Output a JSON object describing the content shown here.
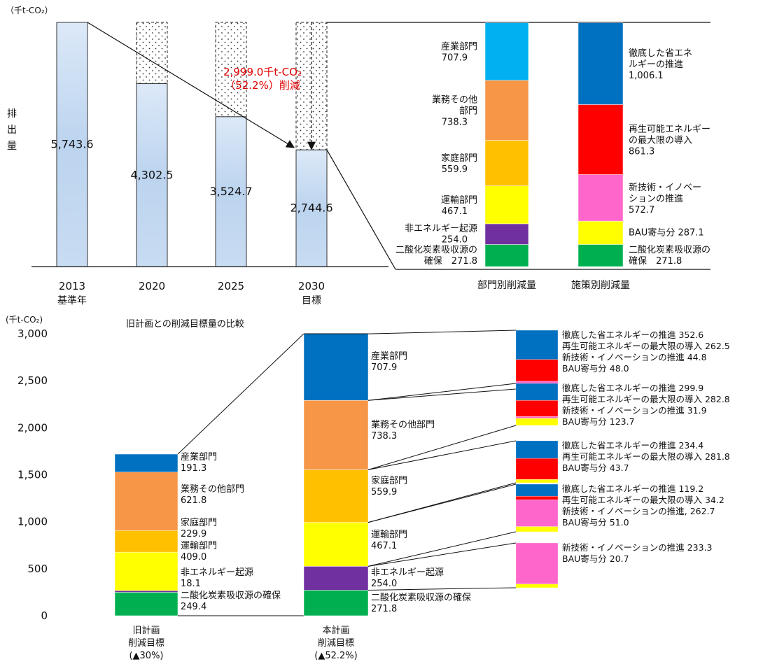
{
  "chart_data": [
    {
      "type": "bar",
      "unit_label": "（千t-CO₂）",
      "ylabel": "排出量",
      "categories": [
        {
          "line1": "2013",
          "line2": "基準年"
        },
        {
          "line1": "2020",
          "line2": ""
        },
        {
          "line1": "2025",
          "line2": ""
        },
        {
          "line1": "2030",
          "line2": "目標"
        }
      ],
      "values": [
        5743.6,
        4302.5,
        3524.7,
        2744.6
      ],
      "value_labels": [
        "5,743.6",
        "4,302.5",
        "3,524.7",
        "2,744.6"
      ],
      "reduction_annotation": [
        "2,999.0千t-CO₂",
        "（52.2%）削減"
      ],
      "ylim": [
        0,
        5743.6
      ],
      "grid": false
    },
    {
      "type": "bar",
      "stacked": true,
      "categories": [
        "部門別削減量",
        "施策別削減量"
      ],
      "series_by_sector": [
        {
          "name_lines": [
            "産業部門"
          ],
          "value": 707.9,
          "value_label": "707.9",
          "color": "#00B0F0"
        },
        {
          "name_lines": [
            "業務その他",
            "部門"
          ],
          "value": 738.3,
          "value_label": "738.3",
          "color": "#F79646"
        },
        {
          "name_lines": [
            "家庭部門"
          ],
          "value": 559.9,
          "value_label": "559.9",
          "color": "#FFC000"
        },
        {
          "name_lines": [
            "運輸部門"
          ],
          "value": 467.1,
          "value_label": "467.1",
          "color": "#FFFF00"
        },
        {
          "name_lines": [
            "非エネルギー起源"
          ],
          "value": 254.0,
          "value_label": "254.0",
          "color": "#7030A0"
        },
        {
          "name_lines": [
            "二酸化炭素吸収源の"
          ],
          "value": 271.8,
          "value_label": "確保　271.8",
          "color": "#00B050"
        }
      ],
      "series_by_measure": [
        {
          "name_lines": [
            "徹底した省エネ",
            "ルギーの推進"
          ],
          "value": 1006.1,
          "value_label": "1,006.1",
          "color": "#0070C0"
        },
        {
          "name_lines": [
            "再生可能エネルギー",
            "の最大限の導入"
          ],
          "value": 861.3,
          "value_label": "861.3",
          "color": "#FF0000"
        },
        {
          "name_lines": [
            "新技術・イノベー",
            "ションの推進"
          ],
          "value": 572.7,
          "value_label": "572.7",
          "color": "#FF66CC"
        },
        {
          "name_lines": [],
          "value": 287.1,
          "value_label": "BAU寄与分 287.1",
          "color": "#FFFF00"
        },
        {
          "name_lines": [
            "二酸化炭素吸収源の"
          ],
          "value": 271.8,
          "value_label": "確保　271.8",
          "color": "#00B050"
        }
      ]
    },
    {
      "type": "bar",
      "stacked": true,
      "title": "旧計画との削減目標量の比較",
      "unit_label": "(千t-CO₂)",
      "ylim": [
        0,
        3000
      ],
      "yticks": [
        {
          "value": 0,
          "label": "0"
        },
        {
          "value": 500,
          "label": "500"
        },
        {
          "value": 1000,
          "label": "1,000"
        },
        {
          "value": 1500,
          "label": "1,500"
        },
        {
          "value": 2000,
          "label": "2,000"
        },
        {
          "value": 2500,
          "label": "2,500"
        },
        {
          "value": 3000,
          "label": "3,000"
        }
      ],
      "categories": [
        {
          "lines": [
            "旧計画",
            "削減目標",
            "(▲30%)"
          ]
        },
        {
          "lines": [
            "本計画",
            "削減目標",
            "(▲52.2%)"
          ]
        }
      ],
      "series": [
        {
          "name": "二酸化炭素吸収源の確保",
          "color": "#00B050",
          "values": [
            249.4,
            271.8
          ],
          "value_labels": [
            "249.4",
            "271.8"
          ]
        },
        {
          "name": "非エネルギー起源",
          "color": "#7030A0",
          "values": [
            18.1,
            254.0
          ],
          "value_labels": [
            "18.1",
            "254.0"
          ]
        },
        {
          "name": "運輸部門",
          "color": "#FFFF00",
          "values": [
            409.0,
            467.1
          ],
          "value_labels": [
            "409.0",
            "467.1"
          ]
        },
        {
          "name": "家庭部門",
          "color": "#FFC000",
          "values": [
            229.9,
            559.9
          ],
          "value_labels": [
            "229.9",
            "559.9"
          ]
        },
        {
          "name": "業務その他部門",
          "color": "#F79646",
          "values": [
            621.8,
            738.3
          ],
          "value_labels": [
            "621.8",
            "738.3"
          ]
        },
        {
          "name": "産業部門",
          "color": "#0070C0",
          "values": [
            191.3,
            707.9
          ],
          "value_labels": [
            "191.3",
            "707.9"
          ]
        }
      ]
    },
    {
      "type": "bar",
      "stacked": true,
      "breakdowns": [
        {
          "sector": "産業部門",
          "segments": [
            {
              "name": "徹底した省エネルギーの推進",
              "value": 352.6,
              "value_label": "352.6",
              "color": "#0070C0"
            },
            {
              "name": "再生可能エネルギーの最大限の導入",
              "value": 262.5,
              "value_label": "262.5",
              "color": "#FF0000"
            },
            {
              "name": "新技術・イノベーションの推進",
              "value": 44.8,
              "value_label": "44.8",
              "color": "#FF66CC"
            },
            {
              "name": "BAU寄与分",
              "value": 48.0,
              "value_label": "48.0",
              "color": "#FFFF00"
            }
          ]
        },
        {
          "sector": "業務その他部門",
          "segments": [
            {
              "name": "徹底した省エネルギーの推進",
              "value": 299.9,
              "value_label": "299.9",
              "color": "#0070C0"
            },
            {
              "name": "再生可能エネルギーの最大限の導入",
              "value": 282.8,
              "value_label": "282.8",
              "color": "#FF0000"
            },
            {
              "name": "新技術・イノベーションの推進",
              "value": 31.9,
              "value_label": "31.9",
              "color": "#FF66CC"
            },
            {
              "name": "BAU寄与分",
              "value": 123.7,
              "value_label": "123.7",
              "color": "#FFFF00"
            }
          ]
        },
        {
          "sector": "家庭部門",
          "segments": [
            {
              "name": "徹底した省エネルギーの推進",
              "value": 234.4,
              "value_label": "234.4",
              "color": "#0070C0"
            },
            {
              "name": "再生可能エネルギーの最大限の導入",
              "value": 281.8,
              "value_label": "281.8",
              "color": "#FF0000"
            },
            {
              "name": "BAU寄与分",
              "value": 43.7,
              "value_label": "43.7",
              "color": "#FFFF00"
            }
          ]
        },
        {
          "sector": "運輸部門",
          "segments": [
            {
              "name": "徹底した省エネルギーの推進",
              "value": 119.2,
              "value_label": "119.2",
              "color": "#0070C0"
            },
            {
              "name": "再生可能エネルギーの最大限の導入",
              "value": 34.2,
              "value_label": "34.2",
              "color": "#FF0000"
            },
            {
              "name": "新技術・イノベーションの推進,",
              "value": 262.7,
              "value_label": "262.7",
              "color": "#FF66CC"
            },
            {
              "name": "BAU寄与分",
              "value": 51.0,
              "value_label": "51.0",
              "color": "#FFFF00"
            }
          ]
        },
        {
          "sector": "非エネルギー起源",
          "segments": [
            {
              "name": "新技術・イノベーションの推進",
              "value": 233.3,
              "value_label": "233.3",
              "color": "#FF66CC"
            },
            {
              "name": "BAU寄与分",
              "value": 20.7,
              "value_label": "20.7",
              "color": "#FFFF00"
            }
          ]
        }
      ]
    }
  ]
}
